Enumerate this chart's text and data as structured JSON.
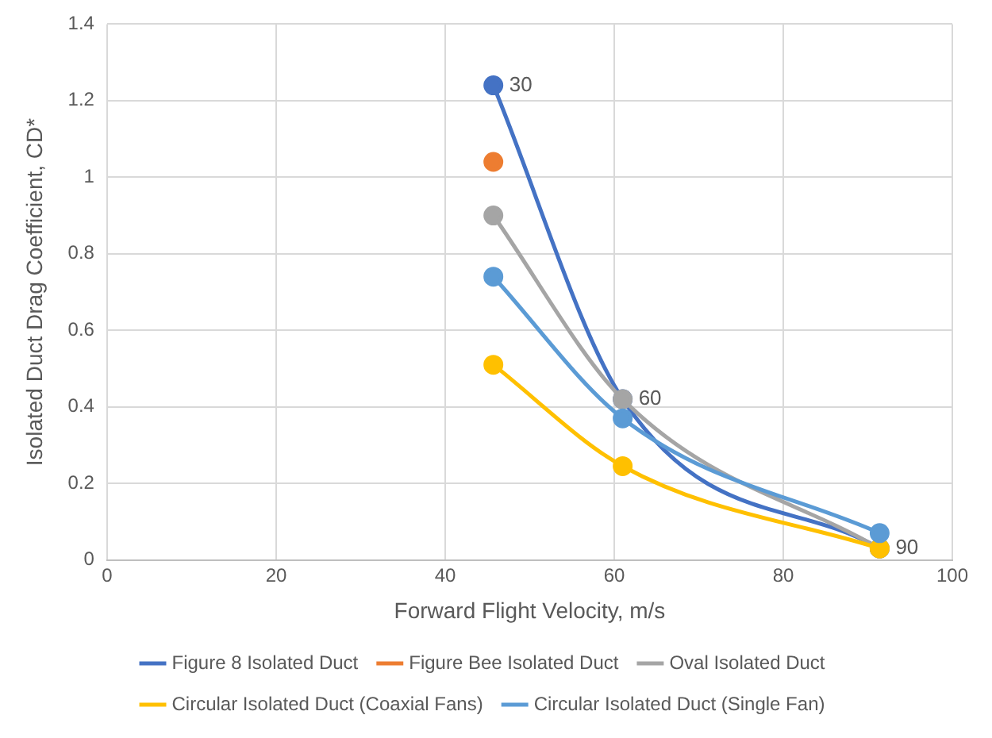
{
  "chart_data": {
    "type": "line",
    "xlabel": "Forward Flight Velocity, m/s",
    "ylabel": "Isolated Duct Drag Coefficient, CD*",
    "xlim": [
      0,
      100
    ],
    "xticks": [
      0,
      20,
      40,
      60,
      80,
      100
    ],
    "ylim": [
      0,
      1.4
    ],
    "yticks": [
      0,
      0.2,
      0.4,
      0.6,
      0.8,
      1,
      1.2,
      1.4
    ],
    "grid": true,
    "legend": "bottom",
    "marker": "circle",
    "line_style": "solid",
    "series": [
      {
        "name": "Figure 8 Isolated Duct",
        "color": "#4472c4",
        "x": [
          45.7,
          61,
          91.4
        ],
        "values": [
          1.24,
          0.42,
          0.03
        ]
      },
      {
        "name": "Figure Bee Isolated Duct",
        "color": "#ed7d31",
        "x": [
          45.7
        ],
        "values": [
          1.04
        ]
      },
      {
        "name": "Oval Isolated Duct",
        "color": "#a5a5a5",
        "x": [
          45.7,
          61,
          91.4
        ],
        "values": [
          0.9,
          0.42,
          0.03
        ]
      },
      {
        "name": "Circular Isolated Duct (Coaxial Fans)",
        "color": "#ffc000",
        "x": [
          45.7,
          61,
          91.4
        ],
        "values": [
          0.51,
          0.245,
          0.03
        ]
      },
      {
        "name": "Circular Isolated Duct (Single Fan)",
        "color": "#5b9bd5",
        "x": [
          45.7,
          61,
          91.4
        ],
        "values": [
          0.74,
          0.37,
          0.07
        ]
      }
    ],
    "annotations": [
      {
        "text": "30",
        "x": 45.7,
        "y": 1.24
      },
      {
        "text": "60",
        "x": 61,
        "y": 0.42
      },
      {
        "text": "90",
        "x": 91.4,
        "y": 0.03
      }
    ]
  }
}
